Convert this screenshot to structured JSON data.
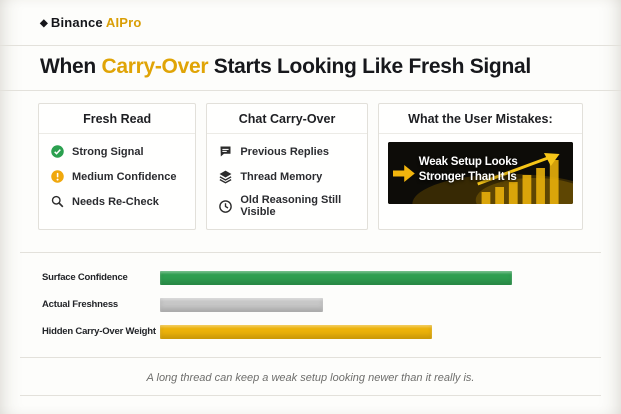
{
  "brand": {
    "icon": "◆",
    "name": "Binance",
    "suffix": "AIPro"
  },
  "title": {
    "pre": "When ",
    "highlight": "Carry-Over",
    "post": " Starts Looking Like Fresh Signal"
  },
  "panels": {
    "fresh_read": {
      "header": "Fresh Read",
      "items": [
        {
          "icon": "check-circle-icon",
          "label": "Strong Signal"
        },
        {
          "icon": "alert-circle-icon",
          "label": "Medium Confidence"
        },
        {
          "icon": "magnifier-icon",
          "label": "Needs Re-Check"
        }
      ]
    },
    "chat_carry_over": {
      "header": "Chat Carry-Over",
      "items": [
        {
          "icon": "speech-bubble-icon",
          "label": "Previous Replies"
        },
        {
          "icon": "layers-icon",
          "label": "Thread Memory"
        },
        {
          "icon": "clock-icon",
          "label": "Old Reasoning Still Visible"
        }
      ]
    },
    "user_mistakes": {
      "header": "What the User Mistakes:",
      "callout_line1": "Weak Setup Looks",
      "callout_line2": "Stronger Than It Is"
    }
  },
  "chart_data": {
    "type": "bar",
    "orientation": "horizontal",
    "title": "",
    "categories": [
      "Surface Confidence",
      "Actual Freshness",
      "Hidden Carry-Over Weight"
    ],
    "values": [
      84,
      39,
      65
    ],
    "xlim": [
      0,
      100
    ],
    "colors": [
      "#2f9e50",
      "#c7c7c7",
      "#ecb20a"
    ],
    "grid": false,
    "legend": false
  },
  "footer": {
    "caption": "A long thread can keep a weak setup looking newer than it really is."
  },
  "theme": {
    "gold": "#e0a406",
    "green": "#2f9e50",
    "gray": "#c7c7c7",
    "dark": "#17181c"
  }
}
